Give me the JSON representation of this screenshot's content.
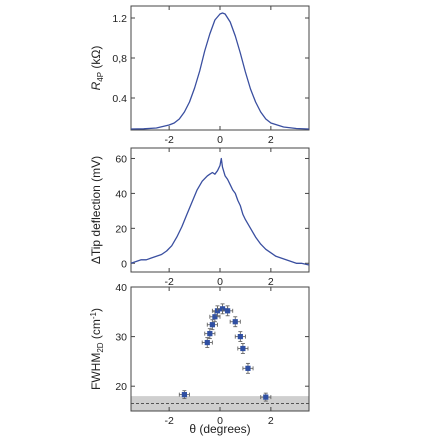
{
  "chart_data": [
    {
      "type": "line",
      "title": "",
      "ylabel_main": "R",
      "ylabel_sub": "4P",
      "ylabel_unit": " (kΩ)",
      "xlabel": "",
      "xlim": [
        -3.5,
        3.5
      ],
      "ylim": [
        0.08,
        1.32
      ],
      "xticks": [
        -2,
        0,
        2
      ],
      "xtick_labels": [
        "-2",
        "0",
        "2"
      ],
      "yticks": [
        0.4,
        0.8,
        1.2
      ],
      "ytick_labels": [
        "0.4",
        "0,8",
        "1.2"
      ],
      "series": [
        {
          "color": "#3a4fa0",
          "x": [
            -3.5,
            -3.0,
            -2.5,
            -2.0,
            -1.8,
            -1.6,
            -1.4,
            -1.2,
            -1.0,
            -0.8,
            -0.6,
            -0.4,
            -0.2,
            0.0,
            0.1,
            0.2,
            0.4,
            0.6,
            0.8,
            1.0,
            1.2,
            1.4,
            1.6,
            1.8,
            2.0,
            2.5,
            3.0,
            3.5
          ],
          "y": [
            0.09,
            0.092,
            0.1,
            0.13,
            0.15,
            0.19,
            0.26,
            0.36,
            0.5,
            0.67,
            0.87,
            1.04,
            1.18,
            1.24,
            1.25,
            1.24,
            1.16,
            1.02,
            0.85,
            0.66,
            0.49,
            0.36,
            0.26,
            0.19,
            0.15,
            0.11,
            0.095,
            0.09
          ]
        }
      ]
    },
    {
      "type": "line",
      "title": "",
      "ylabel": "ΔTip deflection (mV)",
      "xlabel": "",
      "xlim": [
        -3.5,
        3.5
      ],
      "ylim": [
        -5,
        66
      ],
      "xticks": [
        -2,
        0,
        2
      ],
      "xtick_labels": [
        "-2",
        "0",
        "2"
      ],
      "yticks": [
        0,
        20,
        40,
        60
      ],
      "ytick_labels": [
        "0",
        "20",
        "40",
        "60"
      ],
      "series": [
        {
          "color": "#3a4fa0",
          "x": [
            -3.5,
            -3.3,
            -3.1,
            -2.9,
            -2.7,
            -2.5,
            -2.3,
            -2.1,
            -1.9,
            -1.7,
            -1.5,
            -1.3,
            -1.1,
            -0.9,
            -0.7,
            -0.5,
            -0.4,
            -0.3,
            -0.2,
            -0.1,
            0.0,
            0.05,
            0.1,
            0.2,
            0.3,
            0.4,
            0.5,
            0.6,
            0.7,
            0.8,
            0.9,
            1.0,
            1.2,
            1.4,
            1.6,
            1.8,
            2.0,
            2.2,
            2.4,
            2.6,
            2.8,
            3.0,
            3.2,
            3.5
          ],
          "y": [
            0,
            1,
            2,
            2,
            3,
            4,
            5,
            7,
            10,
            15,
            21,
            28,
            35,
            42,
            47,
            50,
            51,
            52,
            51,
            53,
            56,
            60,
            55,
            50,
            48,
            45,
            42,
            40,
            36,
            33,
            28,
            25,
            20,
            15,
            11,
            8,
            6,
            4,
            3,
            2,
            1,
            0,
            0,
            -1
          ]
        }
      ]
    },
    {
      "type": "scatter",
      "title": "",
      "ylabel_main": "FWHM",
      "ylabel_sub": "2D",
      "ylabel_unit": " (cm",
      "ylabel_sup": "-1",
      "ylabel_end": ")",
      "xlabel": "θ (degrees)",
      "xlim": [
        -3.5,
        3.5
      ],
      "ylim": [
        15,
        40
      ],
      "xticks": [
        -2,
        0,
        2
      ],
      "xtick_labels": [
        "-2",
        "0",
        "2"
      ],
      "yticks": [
        20,
        30,
        40
      ],
      "ytick_labels": [
        "20",
        "30",
        "40"
      ],
      "band": [
        15,
        18
      ],
      "dashed_line": 16.5,
      "points": [
        {
          "x": -1.4,
          "y": 18.3,
          "xerr": 0.2,
          "yerr": 0.8
        },
        {
          "x": -0.5,
          "y": 28.8,
          "xerr": 0.2,
          "yerr": 1.0
        },
        {
          "x": -0.4,
          "y": 30.6,
          "xerr": 0.2,
          "yerr": 1.0
        },
        {
          "x": -0.3,
          "y": 32.4,
          "xerr": 0.2,
          "yerr": 1.0
        },
        {
          "x": -0.2,
          "y": 34.0,
          "xerr": 0.2,
          "yerr": 1.0
        },
        {
          "x": -0.1,
          "y": 35.2,
          "xerr": 0.2,
          "yerr": 1.0
        },
        {
          "x": 0.1,
          "y": 35.6,
          "xerr": 0.2,
          "yerr": 1.0
        },
        {
          "x": 0.3,
          "y": 35.2,
          "xerr": 0.2,
          "yerr": 1.0
        },
        {
          "x": 0.6,
          "y": 33.0,
          "xerr": 0.2,
          "yerr": 1.0
        },
        {
          "x": 0.8,
          "y": 30.0,
          "xerr": 0.2,
          "yerr": 1.0
        },
        {
          "x": 0.9,
          "y": 27.6,
          "xerr": 0.2,
          "yerr": 1.0
        },
        {
          "x": 1.1,
          "y": 23.6,
          "xerr": 0.2,
          "yerr": 1.0
        },
        {
          "x": 1.8,
          "y": 17.8,
          "xerr": 0.2,
          "yerr": 0.8
        }
      ],
      "point_color": "#2f4fa2"
    }
  ]
}
